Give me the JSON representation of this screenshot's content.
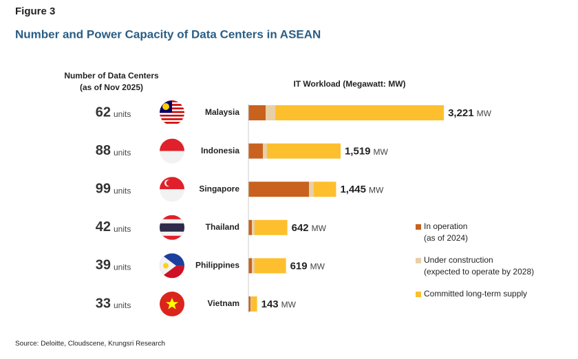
{
  "chart_data": {
    "type": "bar",
    "figure_label": "Figure 3",
    "title": "Number and Power Capacity of Data Centers in ASEAN",
    "count_header": [
      "Number of Data Centers",
      "(as of Nov 2025)"
    ],
    "value_header": "IT Workload (Megawatt: MW)",
    "categories": [
      "Malaysia",
      "Indonesia",
      "Singapore",
      "Thailand",
      "Philippines",
      "Vietnam"
    ],
    "data_center_counts": [
      62,
      88,
      99,
      42,
      39,
      33
    ],
    "count_unit": "units",
    "series": [
      {
        "name": [
          "In operation",
          "(as of 2024)"
        ],
        "color": "#c8621e",
        "values": [
          284,
          238,
          998,
          57,
          57,
          34
        ]
      },
      {
        "name": [
          "Under construction",
          "(expected to operate by 2028)"
        ],
        "color": "#e8cfa8",
        "values": [
          159,
          68,
          79,
          45,
          45,
          11
        ]
      },
      {
        "name": [
          "Committed long-term supply"
        ],
        "color": "#fdbf2d",
        "values": [
          2778,
          1213,
          368,
          540,
          517,
          98
        ]
      }
    ],
    "totals": {
      "values": [
        3221,
        1519,
        1445,
        642,
        619,
        143
      ],
      "value_labels": [
        "3,221",
        "1,519",
        "1,445",
        "642",
        "619",
        "143"
      ]
    },
    "total_unit": "MW",
    "stacked": true,
    "source": "Source: Deloitte, Cloudscene, Krungsri Research"
  }
}
